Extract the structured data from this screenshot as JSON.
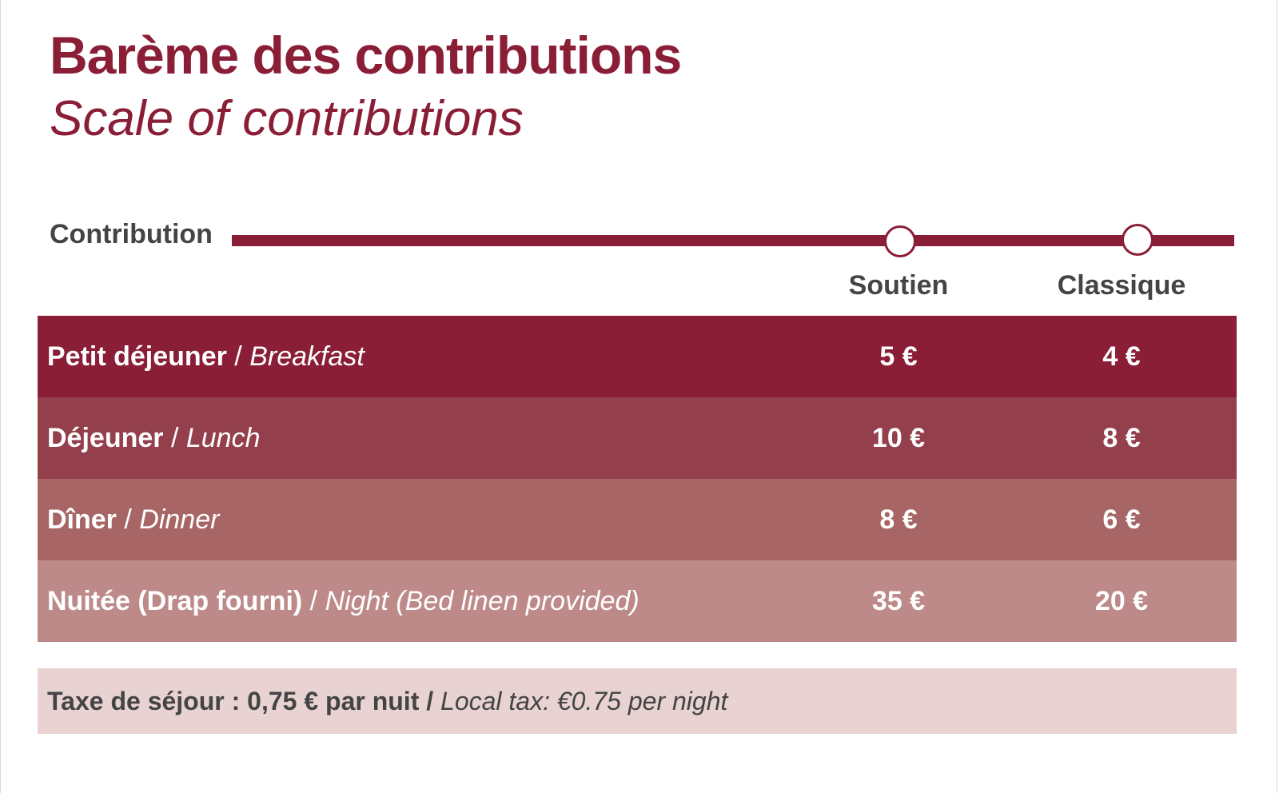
{
  "title": "Barème des contributions",
  "subtitle": "Scale of contributions",
  "contribution_label": "Contribution",
  "columns": [
    "Soutien",
    "Classique"
  ],
  "separator": " / ",
  "rows": [
    {
      "fr": "Petit déjeuner",
      "en": "Breakfast",
      "soutien": "5 €",
      "classique": "4 €",
      "color": "#8a1e37"
    },
    {
      "fr": "Déjeuner",
      "en": "Lunch",
      "soutien": "10 €",
      "classique": "8 €",
      "color": "#943f4c"
    },
    {
      "fr": "Dîner",
      "en": "Dinner",
      "soutien": "8 €",
      "classique": "6 €",
      "color": "#a76565"
    },
    {
      "fr": "Nuitée (Drap fourni)",
      "en": "Night (Bed linen provided)",
      "soutien": "35 €",
      "classique": "20 €",
      "color": "#bd8a89"
    }
  ],
  "tax": {
    "fr": "Taxe de séjour : 0,75 € par nuit",
    "sep": " / ",
    "en": "Local tax: €0.75 per night"
  },
  "colors": {
    "accent": "#8a1e37",
    "text_dark": "#444444",
    "tax_background": "#e8d2d2"
  }
}
